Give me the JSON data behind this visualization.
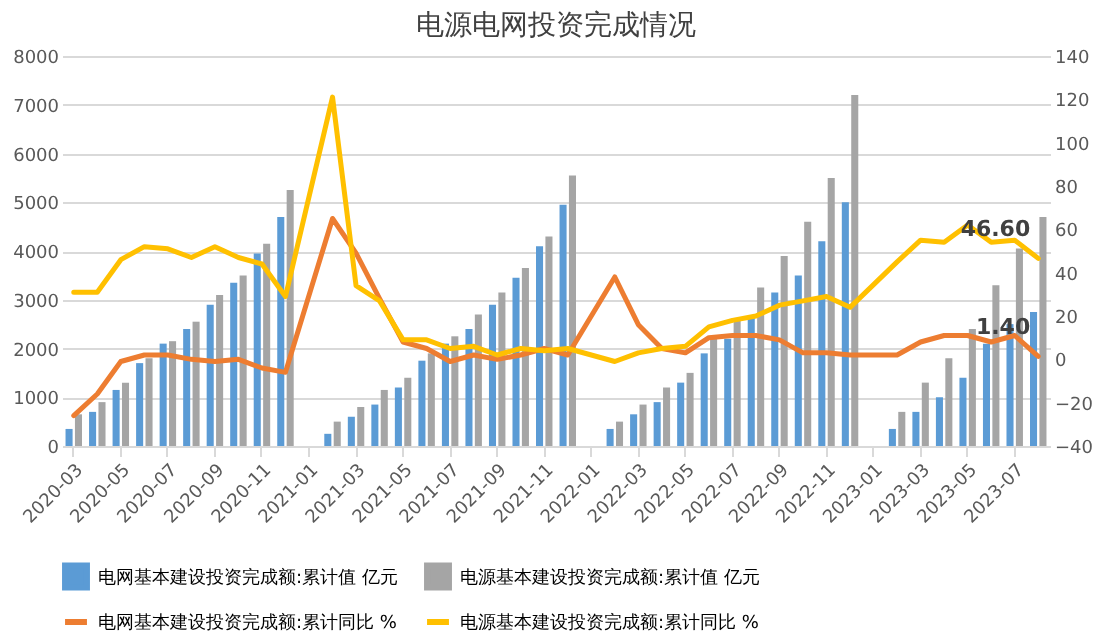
{
  "chart_data": {
    "type": "bar",
    "title": "电源电网投资完成情况",
    "categories": [
      "2020-03",
      null,
      "2020-05",
      null,
      "2020-07",
      null,
      "2020-09",
      null,
      "2020-11",
      null,
      "2021-01",
      null,
      "2021-03",
      null,
      "2021-05",
      null,
      "2021-07",
      null,
      "2021-09",
      null,
      "2021-11",
      null,
      "2022-01",
      null,
      "2022-03",
      null,
      "2022-05",
      null,
      "2022-07",
      null,
      "2022-09",
      null,
      "2022-11",
      null,
      "2023-01",
      null,
      "2023-03",
      null,
      "2023-05",
      null,
      "2023-07",
      null
    ],
    "series": [
      {
        "name": "电网基本建设投资完成额:累计值 亿元",
        "type": "bar",
        "color": "#5b9bd5",
        "values": [
          350,
          700,
          1150,
          1700,
          2100,
          2400,
          2900,
          3350,
          3950,
          4700,
          null,
          250,
          600,
          850,
          1200,
          1750,
          2100,
          2400,
          2900,
          3450,
          4100,
          4950,
          null,
          350,
          650,
          900,
          1300,
          1900,
          2200,
          2650,
          3150,
          3500,
          4200,
          5000,
          null,
          350,
          700,
          1000,
          1400,
          2100,
          2500,
          2750
        ]
      },
      {
        "name": "电源基本建设投资完成额:累计值 亿元",
        "type": "bar",
        "color": "#a5a5a5",
        "values": [
          650,
          900,
          1300,
          1800,
          2150,
          2550,
          3100,
          3500,
          4150,
          5250,
          null,
          500,
          800,
          1150,
          1400,
          1900,
          2250,
          2700,
          3150,
          3650,
          4300,
          5550,
          null,
          500,
          850,
          1200,
          1500,
          2200,
          2600,
          3250,
          3900,
          4600,
          5500,
          7200,
          null,
          700,
          1300,
          1800,
          2400,
          3300,
          4050,
          4700
        ]
      },
      {
        "name": "电网基本建设投资完成额:累计同比 %",
        "type": "line",
        "axis": "y2",
        "color": "#ed7d31",
        "values": [
          -26,
          -16,
          -1,
          2,
          2,
          0,
          -1,
          0,
          -4,
          -6,
          null,
          65,
          49,
          28,
          8,
          5,
          -1,
          2,
          0,
          2,
          5,
          2,
          null,
          38,
          16,
          5,
          3,
          10,
          11,
          11,
          9,
          3,
          3,
          2,
          null,
          2,
          8,
          11,
          11,
          8,
          11,
          1.4
        ],
        "value_labels": [
          null,
          null,
          null,
          null,
          null,
          null,
          null,
          null,
          null,
          null,
          null,
          null,
          null,
          null,
          null,
          null,
          null,
          null,
          null,
          null,
          null,
          null,
          null,
          null,
          null,
          null,
          null,
          null,
          null,
          null,
          null,
          null,
          null,
          null,
          null,
          null,
          null,
          null,
          null,
          null,
          null,
          "1.40"
        ]
      },
      {
        "name": "电源基本建设投资完成额:累计同比 %",
        "type": "line",
        "axis": "y2",
        "color": "#ffc000",
        "values": [
          31,
          31,
          46,
          52,
          51,
          47,
          52,
          47,
          44,
          29,
          null,
          121,
          34,
          27,
          9,
          9,
          5,
          6,
          2,
          5,
          4,
          5,
          null,
          -1,
          3,
          5,
          6,
          15,
          18,
          20,
          25,
          27,
          29,
          24,
          null,
          45,
          55,
          54,
          62,
          54,
          55,
          46.6
        ],
        "value_labels": [
          null,
          null,
          null,
          null,
          null,
          null,
          null,
          null,
          null,
          null,
          null,
          null,
          null,
          null,
          null,
          null,
          null,
          null,
          null,
          null,
          null,
          null,
          null,
          null,
          null,
          null,
          null,
          null,
          null,
          null,
          null,
          null,
          null,
          null,
          null,
          null,
          null,
          null,
          null,
          null,
          null,
          "46.60"
        ]
      }
    ],
    "ylim": [
      0,
      8000
    ],
    "yticks": [
      0,
      1000,
      2000,
      3000,
      4000,
      5000,
      6000,
      7000,
      8000
    ],
    "y2lim": [
      -40,
      140
    ],
    "y2ticks": [
      -40,
      -20,
      0,
      20,
      40,
      60,
      80,
      100,
      120,
      140
    ],
    "grid": "y",
    "legend": "bottom"
  }
}
